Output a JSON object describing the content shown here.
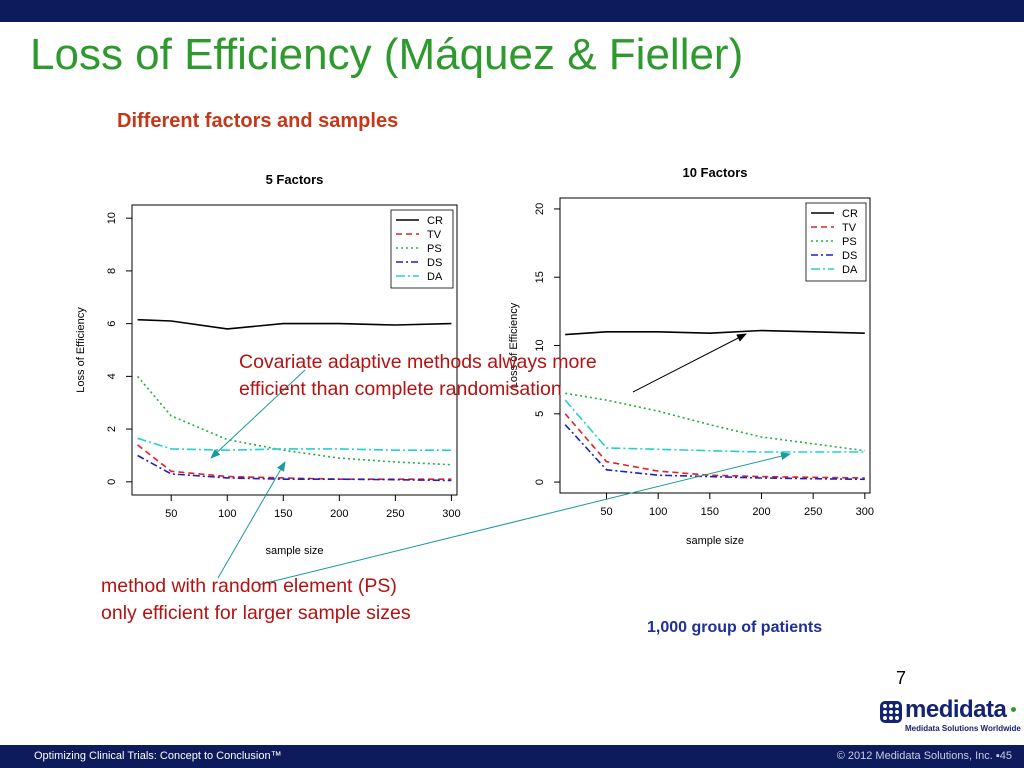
{
  "slide": {
    "title": "Loss of Efficiency (Máquez & Fieller)",
    "subtitle": "Different factors and samples",
    "annotation_1": [
      "Covariate adaptive methods always more",
      "efficient than complete randomisation"
    ],
    "annotation_2": [
      "method with random element (PS)",
      "only efficient for larger sample sizes"
    ],
    "footnote": "1,000 group of patients",
    "page_number": "7",
    "footer_left": "Optimizing Clinical Trials: Concept to Conclusion™",
    "footer_right": "© 2012 Medidata Solutions, Inc. ▪45",
    "logo_text": "medidata",
    "logo_tagline": "Medidata Solutions Worldwide"
  },
  "colors": {
    "title": "#2e9a2e",
    "subtitle": "#c4381a",
    "annotation": "#b31212",
    "arrow": "#1a9a9a",
    "footer_bg": "#0d1a5c",
    "footnote": "#1f2f96"
  },
  "chart_data": [
    {
      "type": "line",
      "title": "5 Factors",
      "xlabel": "sample size",
      "ylabel": "Loss of Efficiency",
      "xlim": [
        15,
        305
      ],
      "ylim": [
        -0.5,
        10.5
      ],
      "xticks": [
        50,
        100,
        150,
        200,
        250,
        300
      ],
      "yticks": [
        0,
        2,
        4,
        6,
        8,
        10
      ],
      "legend": "top-right",
      "x": [
        20,
        50,
        100,
        150,
        200,
        250,
        300
      ],
      "series": [
        {
          "name": "CR",
          "color": "#000000",
          "dash": "",
          "values": [
            6.15,
            6.1,
            5.8,
            6.0,
            6.0,
            5.95,
            6.0
          ]
        },
        {
          "name": "TV",
          "color": "#e0202a",
          "dash": "6,4",
          "values": [
            1.4,
            0.4,
            0.2,
            0.15,
            0.1,
            0.1,
            0.1
          ]
        },
        {
          "name": "PS",
          "color": "#20b040",
          "dash": "2,3",
          "values": [
            4.0,
            2.5,
            1.6,
            1.2,
            0.9,
            0.75,
            0.65
          ]
        },
        {
          "name": "DS",
          "color": "#2020c0",
          "dash": "7,3,2,3",
          "values": [
            1.0,
            0.3,
            0.15,
            0.1,
            0.1,
            0.08,
            0.05
          ]
        },
        {
          "name": "DA",
          "color": "#20d0d0",
          "dash": "9,3,2,3",
          "values": [
            1.65,
            1.25,
            1.2,
            1.25,
            1.25,
            1.2,
            1.2
          ]
        }
      ]
    },
    {
      "type": "line",
      "title": "10 Factors",
      "xlabel": "sample size",
      "ylabel": "Loss of Efficiency",
      "xlim": [
        5,
        305
      ],
      "ylim": [
        -0.8,
        20.8
      ],
      "xticks": [
        50,
        100,
        150,
        200,
        250,
        300
      ],
      "yticks": [
        0,
        5,
        10,
        15,
        20
      ],
      "legend": "top-right",
      "x": [
        10,
        50,
        100,
        150,
        200,
        250,
        300
      ],
      "series": [
        {
          "name": "CR",
          "color": "#000000",
          "dash": "",
          "values": [
            10.8,
            11.0,
            11.0,
            10.9,
            11.1,
            11.0,
            10.9
          ]
        },
        {
          "name": "TV",
          "color": "#e0202a",
          "dash": "6,4",
          "values": [
            5.0,
            1.5,
            0.8,
            0.5,
            0.4,
            0.35,
            0.3
          ]
        },
        {
          "name": "PS",
          "color": "#20b040",
          "dash": "2,3",
          "values": [
            6.5,
            6.0,
            5.2,
            4.2,
            3.3,
            2.8,
            2.3
          ]
        },
        {
          "name": "DS",
          "color": "#2020c0",
          "dash": "7,3,2,3",
          "values": [
            4.2,
            0.9,
            0.5,
            0.4,
            0.3,
            0.25,
            0.2
          ]
        },
        {
          "name": "DA",
          "color": "#20d0d0",
          "dash": "9,3,2,3",
          "values": [
            6.0,
            2.5,
            2.4,
            2.3,
            2.2,
            2.2,
            2.2
          ]
        }
      ]
    }
  ]
}
